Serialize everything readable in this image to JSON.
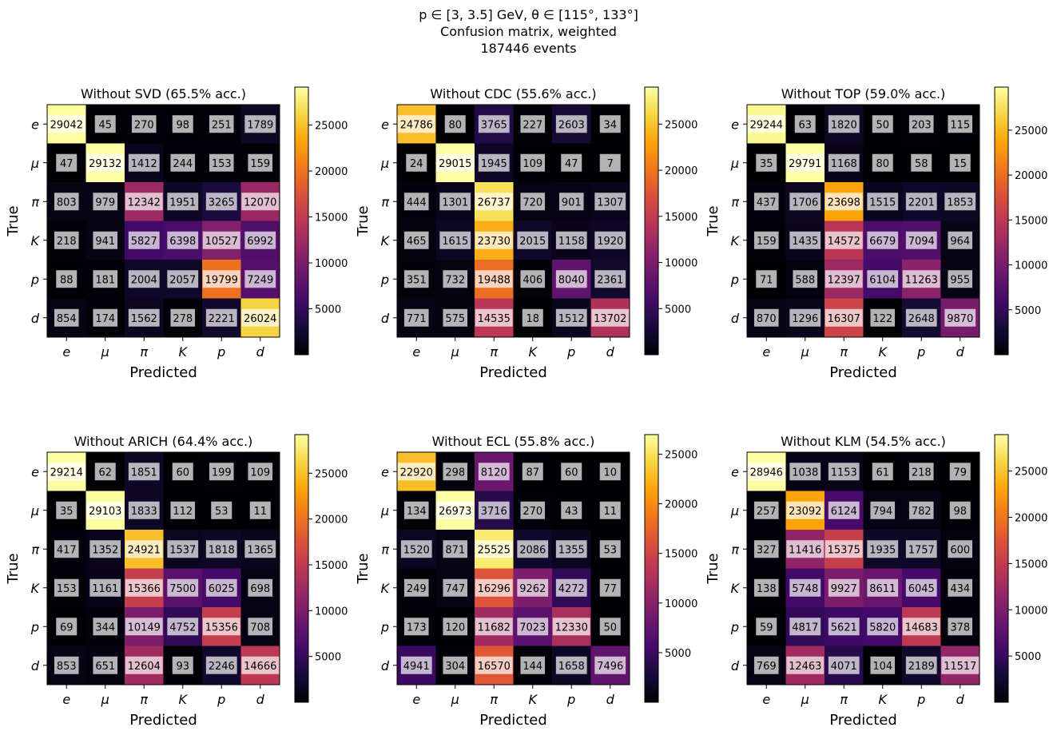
{
  "suptitle": {
    "line1": "p ∈ [3, 3.5] GeV, θ ∈ [115°, 133°]",
    "line2": "Confusion matrix, weighted",
    "line3": "187446 events"
  },
  "colormap": "inferno",
  "chart_data": [
    {
      "type": "heatmap",
      "title": "Without SVD (65.5% acc.)",
      "xlabel": "Predicted",
      "ylabel": "True",
      "categories": [
        "e",
        "μ",
        "π",
        "K",
        "p",
        "d"
      ],
      "values": [
        [
          29042,
          45,
          270,
          98,
          251,
          1789
        ],
        [
          47,
          29132,
          1412,
          244,
          153,
          159
        ],
        [
          803,
          979,
          12342,
          1951,
          3265,
          12070
        ],
        [
          218,
          941,
          5827,
          6398,
          10527,
          6992
        ],
        [
          88,
          181,
          2004,
          2057,
          19799,
          7249
        ],
        [
          854,
          174,
          1562,
          278,
          2221,
          26024
        ]
      ],
      "colorbar_ticks": [
        5000,
        10000,
        15000,
        20000,
        25000
      ],
      "colorbar_range": [
        0,
        29132
      ]
    },
    {
      "type": "heatmap",
      "title": "Without CDC (55.6% acc.)",
      "xlabel": "Predicted",
      "ylabel": "True",
      "categories": [
        "e",
        "μ",
        "π",
        "K",
        "p",
        "d"
      ],
      "values": [
        [
          24786,
          80,
          3765,
          227,
          2603,
          34
        ],
        [
          24,
          29015,
          1945,
          109,
          47,
          7
        ],
        [
          444,
          1301,
          26737,
          720,
          901,
          1307
        ],
        [
          465,
          1615,
          23730,
          2015,
          1158,
          1920
        ],
        [
          351,
          732,
          19488,
          406,
          8040,
          2361
        ],
        [
          771,
          575,
          14535,
          18,
          1512,
          13702
        ]
      ],
      "colorbar_ticks": [
        5000,
        10000,
        15000,
        20000,
        25000
      ],
      "colorbar_range": [
        0,
        29015
      ]
    },
    {
      "type": "heatmap",
      "title": "Without TOP (59.0% acc.)",
      "xlabel": "Predicted",
      "ylabel": "True",
      "categories": [
        "e",
        "μ",
        "π",
        "K",
        "p",
        "d"
      ],
      "values": [
        [
          29244,
          63,
          1820,
          50,
          203,
          115
        ],
        [
          35,
          29791,
          1168,
          80,
          58,
          15
        ],
        [
          437,
          1706,
          23698,
          1515,
          2201,
          1853
        ],
        [
          159,
          1435,
          14572,
          6679,
          7094,
          964
        ],
        [
          71,
          588,
          12397,
          6104,
          11263,
          955
        ],
        [
          870,
          1296,
          16307,
          122,
          2648,
          9870
        ]
      ],
      "colorbar_ticks": [
        5000,
        10000,
        15000,
        20000,
        25000
      ],
      "colorbar_range": [
        0,
        29791
      ]
    },
    {
      "type": "heatmap",
      "title": "Without ARICH (64.4% acc.)",
      "xlabel": "Predicted",
      "ylabel": "True",
      "categories": [
        "e",
        "μ",
        "π",
        "K",
        "p",
        "d"
      ],
      "values": [
        [
          29214,
          62,
          1851,
          60,
          199,
          109
        ],
        [
          35,
          29103,
          1833,
          112,
          53,
          11
        ],
        [
          417,
          1352,
          24921,
          1537,
          1818,
          1365
        ],
        [
          153,
          1161,
          15366,
          7500,
          6025,
          698
        ],
        [
          69,
          344,
          10149,
          4752,
          15356,
          708
        ],
        [
          853,
          651,
          12604,
          93,
          2246,
          14666
        ]
      ],
      "colorbar_ticks": [
        5000,
        10000,
        15000,
        20000,
        25000
      ],
      "colorbar_range": [
        0,
        29214
      ]
    },
    {
      "type": "heatmap",
      "title": "Without ECL (55.8% acc.)",
      "xlabel": "Predicted",
      "ylabel": "True",
      "categories": [
        "e",
        "μ",
        "π",
        "K",
        "p",
        "d"
      ],
      "values": [
        [
          22920,
          298,
          8120,
          87,
          60,
          10
        ],
        [
          134,
          26973,
          3716,
          270,
          43,
          11
        ],
        [
          1520,
          871,
          25525,
          2086,
          1355,
          53
        ],
        [
          249,
          747,
          16296,
          9262,
          4272,
          77
        ],
        [
          173,
          120,
          11682,
          7023,
          12330,
          50
        ],
        [
          4941,
          304,
          16570,
          144,
          1658,
          7496
        ]
      ],
      "colorbar_ticks": [
        5000,
        10000,
        15000,
        20000,
        25000
      ],
      "colorbar_range": [
        0,
        26973
      ]
    },
    {
      "type": "heatmap",
      "title": "Without KLM (54.5% acc.)",
      "xlabel": "Predicted",
      "ylabel": "True",
      "categories": [
        "e",
        "μ",
        "π",
        "K",
        "p",
        "d"
      ],
      "values": [
        [
          28946,
          1038,
          1153,
          61,
          218,
          79
        ],
        [
          257,
          23092,
          6124,
          794,
          782,
          98
        ],
        [
          327,
          11416,
          15375,
          1935,
          1757,
          600
        ],
        [
          138,
          5748,
          9927,
          8611,
          6045,
          434
        ],
        [
          59,
          4817,
          5621,
          5820,
          14683,
          378
        ],
        [
          769,
          12463,
          4071,
          104,
          2189,
          11517
        ]
      ],
      "colorbar_ticks": [
        5000,
        10000,
        15000,
        20000,
        25000
      ],
      "colorbar_range": [
        0,
        28946
      ]
    }
  ]
}
